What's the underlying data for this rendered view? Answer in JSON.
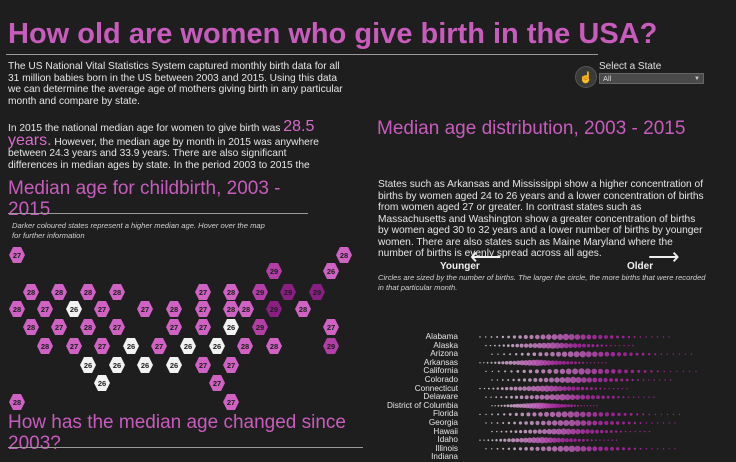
{
  "title": "How old are women who give birth in the USA?",
  "intro": "The US National Vital Statistics System captured monthly birth data for all 31 million babies born in the US between 2003 and 2015. Using this data we can determine the average age of mothers giving birth in any particular month and compare by state.",
  "paragraph2": {
    "part1": "In 2015 the national median age for women to give birth was ",
    "big_value": "28.5 years.",
    "part2": " However, the median age by month in 2015 was anywhere between 24.3 years and 33.9 years. There are also significant differences in median ages by state. In the period 2003 to 2015 the"
  },
  "section_map": {
    "heading": "Median age for childbirth, 2003 - 2015",
    "note": "Darker coloured states represent a higher median age. Hover over the map for further information"
  },
  "section_change": {
    "heading": "How has the median age changed since 2003?"
  },
  "state_filter": {
    "label": "Select a State",
    "value": "All"
  },
  "section_distribution": {
    "heading": "Median age distribution, 2003 - 2015",
    "body": "States such as Arkansas and Mississippi show a higher concentration of births by women aged 24 to 26 years and a lower concentration of births from women aged 27 or greater. In contrast states such as Massachusetts and Washington show a greater concentration of births by women aged 30 to 32 years and a lower number of births by younger women. There are also states such as Maine  Maryland where the number of births is evenly spread across all ages.",
    "note": "Circles are sized by the number of births. The larger the circle, the more births that were recorded in that particular month.",
    "younger_label": "Younger",
    "older_label": "Older"
  },
  "states": [
    "Alabama",
    "Alaska",
    "Arizona",
    "Arkansas",
    "California",
    "Colorado",
    "Connecticut",
    "Delaware",
    "District of Columbia",
    "Florida",
    "Georgia",
    "Hawaii",
    "Idaho",
    "Illinois",
    "Indiana"
  ],
  "hex_map": [
    {
      "v": "27",
      "lv": "l1"
    },
    {
      "v": "28",
      "lv": "l1"
    },
    {
      "v": "29",
      "lv": "l2"
    },
    {
      "v": "26",
      "lv": "l1"
    },
    {
      "v": "28",
      "lv": "l1"
    },
    {
      "v": "28",
      "lv": "l1"
    },
    {
      "v": "28",
      "lv": "l1"
    },
    {
      "v": "28",
      "lv": "l1"
    },
    {
      "v": "27",
      "lv": "l1"
    },
    {
      "v": "28",
      "lv": "l1"
    },
    {
      "v": "29",
      "lv": "l2"
    },
    {
      "v": "29",
      "lv": "l3"
    },
    {
      "v": "29",
      "lv": "l3"
    },
    {
      "v": "28",
      "lv": "l1"
    },
    {
      "v": "27",
      "lv": "l1"
    },
    {
      "v": "26",
      "lv": "l0"
    },
    {
      "v": "27",
      "lv": "l1"
    },
    {
      "v": "27",
      "lv": "l1"
    },
    {
      "v": "28",
      "lv": "l1"
    },
    {
      "v": "27",
      "lv": "l1"
    },
    {
      "v": "28",
      "lv": "l1"
    },
    {
      "v": "28",
      "lv": "l1"
    },
    {
      "v": "29",
      "lv": "l3"
    },
    {
      "v": "28",
      "lv": "l1"
    },
    {
      "v": "28",
      "lv": "l1"
    },
    {
      "v": "27",
      "lv": "l1"
    },
    {
      "v": "28",
      "lv": "l1"
    },
    {
      "v": "27",
      "lv": "l1"
    },
    {
      "v": "27",
      "lv": "l1"
    },
    {
      "v": "27",
      "lv": "l1"
    },
    {
      "v": "26",
      "lv": "l0"
    },
    {
      "v": "29",
      "lv": "l2"
    },
    {
      "v": "27",
      "lv": "l1"
    },
    {
      "v": "28",
      "lv": "l1"
    },
    {
      "v": "27",
      "lv": "l1"
    },
    {
      "v": "27",
      "lv": "l1"
    },
    {
      "v": "26",
      "lv": "l0"
    },
    {
      "v": "27",
      "lv": "l1"
    },
    {
      "v": "26",
      "lv": "l0"
    },
    {
      "v": "26",
      "lv": "l0"
    },
    {
      "v": "28",
      "lv": "l1"
    },
    {
      "v": "28",
      "lv": "l1"
    },
    {
      "v": "29",
      "lv": "l2"
    },
    {
      "v": "26",
      "lv": "l0"
    },
    {
      "v": "26",
      "lv": "l0"
    },
    {
      "v": "26",
      "lv": "l0"
    },
    {
      "v": "26",
      "lv": "l0"
    },
    {
      "v": "27",
      "lv": "l1"
    },
    {
      "v": "27",
      "lv": "l1"
    },
    {
      "v": "26",
      "lv": "l0"
    },
    {
      "v": "27",
      "lv": "l1"
    },
    {
      "v": "28",
      "lv": "l1"
    },
    {
      "v": "27",
      "lv": "l1"
    }
  ],
  "colors": {
    "accent": "#c85cbd",
    "background": "#1e1e1e"
  }
}
